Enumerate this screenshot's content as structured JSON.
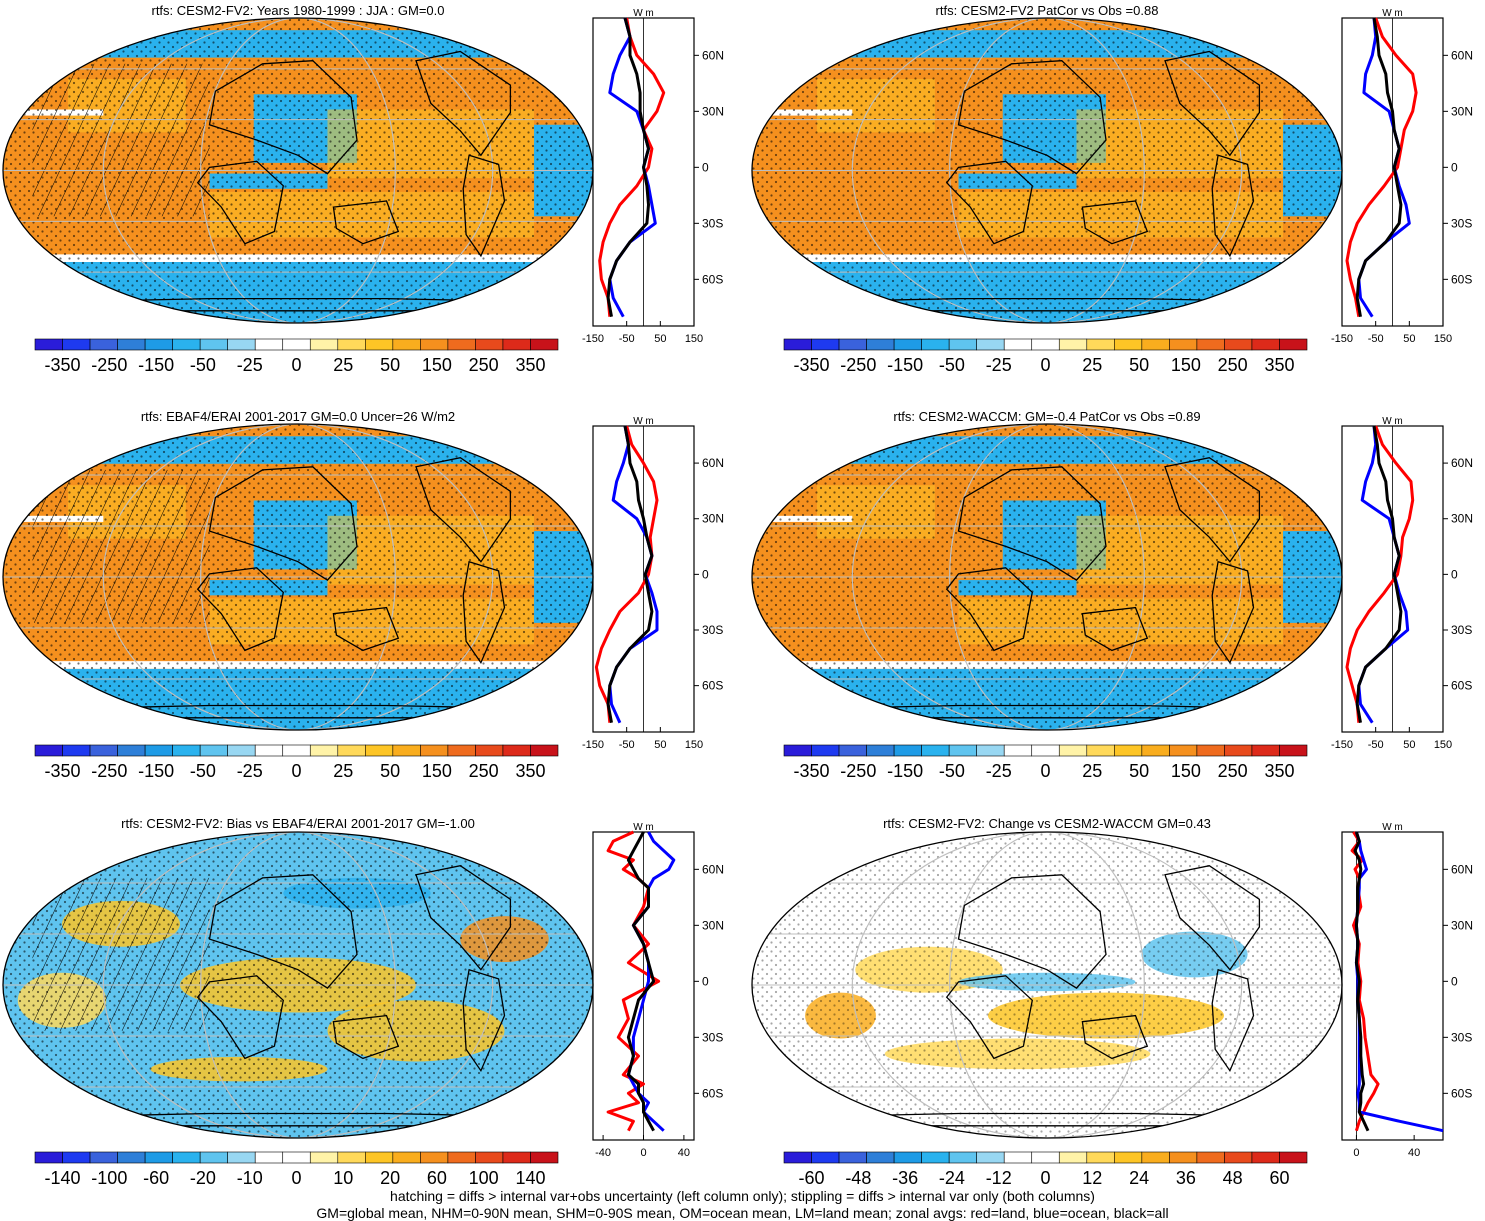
{
  "colors": {
    "cbar_main": [
      "#2a1cd9",
      "#1e3af0",
      "#3a62dc",
      "#2e7fd8",
      "#1e9be6",
      "#2ab2ee",
      "#5fc4ef",
      "#98d7f2",
      "#ffffff",
      "#ffffff",
      "#fff3a8",
      "#ffd95a",
      "#fdc526",
      "#f9ad1e",
      "#f5901e",
      "#ef6b1e",
      "#e84a1c",
      "#dd2a1a",
      "#c8121a"
    ],
    "land_line": "#000000",
    "zonal_land": "#ff0000",
    "zonal_ocean": "#0000ff",
    "zonal_all": "#000000",
    "grid": "#bfbfbf"
  },
  "footer": {
    "line1": "hatching = diffs > internal var+obs uncertainty (left column only); stippling = diffs > internal var only (both columns)",
    "line2": "GM=global mean, NHM=0-90N mean, SHM=0-90S mean, OM=ocean mean, LM=land mean; zonal avgs: red=land, blue=ocean, black=all"
  },
  "chart_data": [
    {
      "type": "heatmap",
      "title": "rtfs: CESM2-FV2: Years 1980-1999 : JJA : GM=0.0",
      "colorbar_labels": [
        "-350",
        "-250",
        "-150",
        "-50",
        "-25",
        "0",
        "25",
        "50",
        "150",
        "250",
        "350"
      ],
      "hatching": true,
      "stippling": true,
      "zonal": {
        "type": "line",
        "unit_label": "W m",
        "yticks": [
          "60N",
          "30N",
          "0",
          "30S",
          "60S"
        ],
        "xticks": [
          "-150",
          "-50",
          "50",
          "150"
        ],
        "xlim": [
          -150,
          150
        ],
        "lat": [
          80,
          70,
          60,
          50,
          40,
          30,
          20,
          10,
          0,
          -10,
          -20,
          -30,
          -40,
          -50,
          -60,
          -70,
          -80
        ],
        "series": [
          {
            "name": "land",
            "values": [
              -50,
              -40,
              -20,
              30,
              60,
              40,
              0,
              25,
              15,
              -20,
              -70,
              -100,
              -120,
              -130,
              -125,
              -105,
              -100
            ]
          },
          {
            "name": "ocean",
            "values": [
              -55,
              -40,
              -70,
              -90,
              -100,
              -20,
              0,
              15,
              0,
              15,
              25,
              35,
              -40,
              -80,
              -100,
              -90,
              -60
            ]
          },
          {
            "name": "all",
            "values": [
              -55,
              -40,
              -40,
              -20,
              -10,
              -10,
              0,
              15,
              0,
              10,
              15,
              10,
              -40,
              -80,
              -100,
              -105,
              -95
            ]
          }
        ]
      }
    },
    {
      "type": "heatmap",
      "title": "rtfs: CESM2-FV2 PatCor vs Obs =0.88",
      "colorbar_labels": [
        "-350",
        "-250",
        "-150",
        "-50",
        "-25",
        "0",
        "25",
        "50",
        "150",
        "250",
        "350"
      ],
      "hatching": false,
      "stippling": true,
      "zonal": {
        "type": "line",
        "unit_label": "W m",
        "yticks": [
          "60N",
          "30N",
          "0",
          "30S",
          "60S"
        ],
        "xticks": [
          "-150",
          "-50",
          "50",
          "150"
        ],
        "xlim": [
          -150,
          150
        ],
        "lat": [
          80,
          70,
          60,
          50,
          40,
          30,
          20,
          10,
          0,
          -10,
          -20,
          -30,
          -40,
          -50,
          -60,
          -70,
          -80
        ],
        "series": [
          {
            "name": "land",
            "values": [
              -50,
              -30,
              10,
              60,
              70,
              60,
              35,
              25,
              15,
              -25,
              -70,
              -105,
              -125,
              -135,
              -125,
              -110,
              -100
            ]
          },
          {
            "name": "ocean",
            "values": [
              -55,
              -50,
              -60,
              -80,
              -85,
              -10,
              5,
              20,
              5,
              20,
              40,
              50,
              -20,
              -80,
              -100,
              -95,
              -60
            ]
          },
          {
            "name": "all",
            "values": [
              -55,
              -45,
              -40,
              -20,
              -15,
              0,
              5,
              20,
              5,
              15,
              25,
              20,
              -20,
              -80,
              -100,
              -105,
              -95
            ]
          }
        ]
      }
    },
    {
      "type": "heatmap",
      "title": "rtfs: EBAF4/ERAI 2001-2017 GM=0.0 Uncer=26 W/m2",
      "colorbar_labels": [
        "-350",
        "-250",
        "-150",
        "-50",
        "-25",
        "0",
        "25",
        "50",
        "150",
        "250",
        "350"
      ],
      "hatching": true,
      "stippling": true,
      "zonal": {
        "type": "line",
        "unit_label": "W m",
        "yticks": [
          "60N",
          "30N",
          "0",
          "30S",
          "60S"
        ],
        "xticks": [
          "-150",
          "-50",
          "50",
          "150"
        ],
        "xlim": [
          -150,
          150
        ],
        "lat": [
          80,
          70,
          60,
          50,
          40,
          30,
          20,
          10,
          0,
          -10,
          -20,
          -30,
          -40,
          -50,
          -60,
          -70,
          -80
        ],
        "series": [
          {
            "name": "land",
            "values": [
              -50,
              -35,
              0,
              30,
              40,
              30,
              20,
              25,
              15,
              -15,
              -70,
              -100,
              -125,
              -140,
              -130,
              -105,
              -100
            ]
          },
          {
            "name": "ocean",
            "values": [
              -55,
              -45,
              -60,
              -80,
              -90,
              -20,
              10,
              25,
              5,
              25,
              40,
              40,
              -40,
              -80,
              -100,
              -95,
              -70
            ]
          },
          {
            "name": "all",
            "values": [
              -55,
              -45,
              -40,
              -20,
              -15,
              0,
              10,
              25,
              5,
              15,
              25,
              15,
              -40,
              -80,
              -100,
              -105,
              -95
            ]
          }
        ]
      }
    },
    {
      "type": "heatmap",
      "title": "rtfs: CESM2-WACCM: GM=-0.4 PatCor vs Obs =0.89",
      "colorbar_labels": [
        "-350",
        "-250",
        "-150",
        "-50",
        "-25",
        "0",
        "25",
        "50",
        "150",
        "250",
        "350"
      ],
      "hatching": false,
      "stippling": true,
      "zonal": {
        "type": "line",
        "unit_label": "W m",
        "yticks": [
          "60N",
          "30N",
          "0",
          "30S",
          "60S"
        ],
        "xticks": [
          "-150",
          "-50",
          "50",
          "150"
        ],
        "xlim": [
          -150,
          150
        ],
        "lat": [
          80,
          70,
          60,
          50,
          40,
          30,
          20,
          10,
          0,
          -10,
          -20,
          -30,
          -40,
          -50,
          -60,
          -70,
          -80
        ],
        "series": [
          {
            "name": "land",
            "values": [
              -50,
              -30,
              10,
              55,
              60,
              50,
              30,
              25,
              15,
              -25,
              -70,
              -105,
              -125,
              -135,
              -120,
              -105,
              -100
            ]
          },
          {
            "name": "ocean",
            "values": [
              -55,
              -50,
              -60,
              -80,
              -90,
              -10,
              5,
              20,
              5,
              20,
              40,
              45,
              -20,
              -80,
              -100,
              -95,
              -60
            ]
          },
          {
            "name": "all",
            "values": [
              -55,
              -45,
              -40,
              -20,
              -15,
              0,
              5,
              20,
              5,
              15,
              25,
              20,
              -20,
              -80,
              -100,
              -105,
              -95
            ]
          }
        ]
      }
    },
    {
      "type": "heatmap",
      "title": "rtfs: CESM2-FV2: Bias vs EBAF4/ERAI 2001-2017 GM=-1.00",
      "colorbar_labels": [
        "-140",
        "-100",
        "-60",
        "-20",
        "-10",
        "0",
        "10",
        "20",
        "60",
        "100",
        "140"
      ],
      "hatching": true,
      "stippling": true,
      "zonal": {
        "type": "line",
        "unit_label": "W m",
        "yticks": [
          "60N",
          "30N",
          "0",
          "30S",
          "60S"
        ],
        "xticks": [
          "-40",
          "0",
          "40"
        ],
        "xlim": [
          -50,
          50
        ],
        "lat": [
          80,
          75,
          70,
          65,
          60,
          55,
          50,
          40,
          30,
          20,
          10,
          0,
          -10,
          -20,
          -30,
          -40,
          -50,
          -55,
          -60,
          -65,
          -70,
          -75,
          -80
        ],
        "series": [
          {
            "name": "land",
            "values": [
              -10,
              -30,
              -35,
              -10,
              -20,
              -5,
              5,
              0,
              -10,
              5,
              -15,
              15,
              -20,
              -15,
              -25,
              -5,
              -20,
              0,
              -15,
              -5,
              -35,
              -10,
              -15
            ]
          },
          {
            "name": "ocean",
            "values": [
              5,
              10,
              20,
              30,
              25,
              10,
              5,
              5,
              -10,
              0,
              5,
              5,
              0,
              -5,
              -10,
              -10,
              -15,
              -10,
              -5,
              5,
              0,
              10,
              20
            ]
          },
          {
            "name": "all",
            "values": [
              0,
              -5,
              -10,
              -15,
              -10,
              -5,
              5,
              5,
              -10,
              0,
              5,
              10,
              -5,
              -10,
              -15,
              -10,
              -15,
              -5,
              -5,
              0,
              0,
              5,
              10
            ]
          }
        ]
      }
    },
    {
      "type": "heatmap",
      "title": "rtfs: CESM2-FV2: Change vs CESM2-WACCM GM=0.43",
      "colorbar_labels": [
        "-60",
        "-48",
        "-36",
        "-24",
        "-12",
        "0",
        "12",
        "24",
        "36",
        "48",
        "60"
      ],
      "hatching": false,
      "stippling": true,
      "zonal": {
        "type": "line",
        "unit_label": "W m",
        "yticks": [
          "60N",
          "30N",
          "0",
          "30S",
          "60S"
        ],
        "xticks": [
          "0",
          "40"
        ],
        "xlim": [
          -10,
          60
        ],
        "lat": [
          80,
          75,
          70,
          65,
          60,
          55,
          50,
          40,
          30,
          20,
          10,
          0,
          -10,
          -20,
          -30,
          -40,
          -50,
          -55,
          -60,
          -65,
          -70,
          -75,
          -80
        ],
        "series": [
          {
            "name": "land",
            "values": [
              -2,
              2,
              -3,
              4,
              -1,
              2,
              1,
              3,
              -2,
              2,
              1,
              3,
              2,
              5,
              6,
              8,
              10,
              15,
              12,
              8,
              5,
              2,
              0
            ]
          },
          {
            "name": "ocean",
            "values": [
              0,
              2,
              3,
              5,
              7,
              2,
              2,
              1,
              0,
              1,
              0,
              1,
              1,
              2,
              2,
              2,
              2,
              2,
              1,
              2,
              2,
              30,
              60
            ]
          },
          {
            "name": "all",
            "values": [
              0,
              2,
              -1,
              2,
              3,
              2,
              1,
              1,
              0,
              1,
              0,
              2,
              1,
              2,
              3,
              3,
              4,
              5,
              3,
              3,
              2,
              5,
              8
            ]
          }
        ]
      }
    }
  ]
}
